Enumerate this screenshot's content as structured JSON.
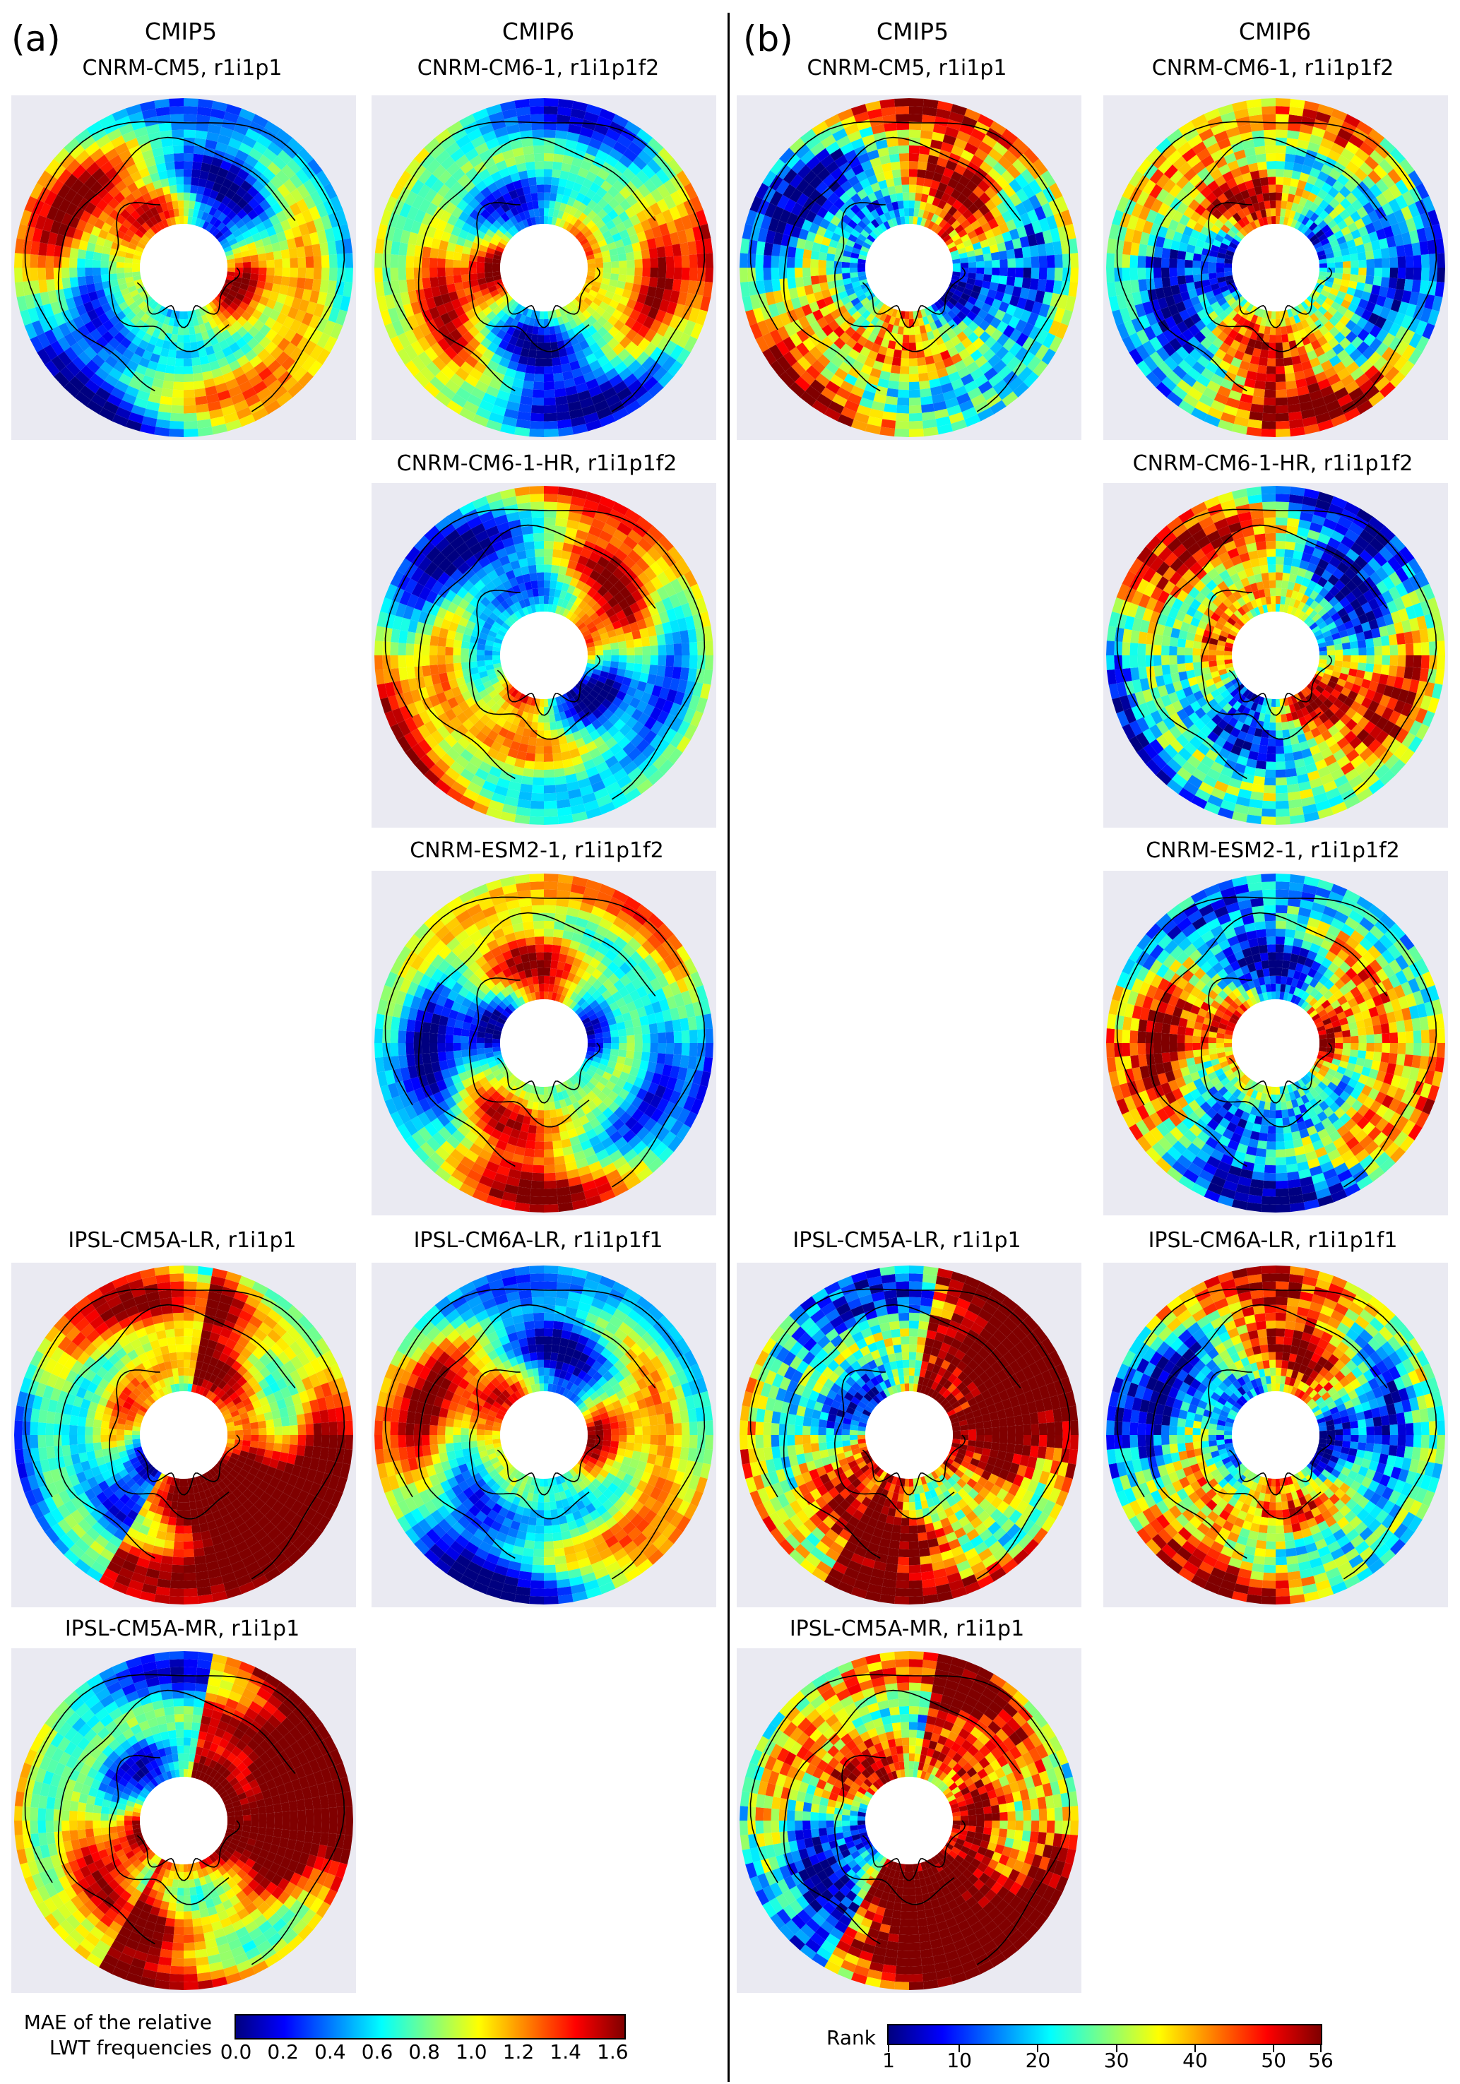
{
  "panels": [
    {
      "letter": "(a)",
      "col_cmip5": "CMIP5",
      "col_cmip6": "CMIP6"
    },
    {
      "letter": "(b)",
      "col_cmip5": "CMIP5",
      "col_cmip6": "CMIP6"
    }
  ],
  "maps": [
    {
      "title": "CNRM-CM5, r1i1p1",
      "panel": "a",
      "colormap": "jet",
      "variable": "MAE"
    },
    {
      "title": "CNRM-CM6-1, r1i1p1f2",
      "panel": "a",
      "colormap": "jet",
      "variable": "MAE"
    },
    {
      "title": "CNRM-CM6-1-HR, r1i1p1f2",
      "panel": "a",
      "colormap": "jet",
      "variable": "MAE"
    },
    {
      "title": "CNRM-ESM2-1, r1i1p1f2",
      "panel": "a",
      "colormap": "jet",
      "variable": "MAE"
    },
    {
      "title": "IPSL-CM5A-LR, r1i1p1",
      "panel": "a",
      "colormap": "jet",
      "variable": "MAE"
    },
    {
      "title": "IPSL-CM6A-LR, r1i1p1f1",
      "panel": "a",
      "colormap": "jet",
      "variable": "MAE"
    },
    {
      "title": "IPSL-CM5A-MR, r1i1p1",
      "panel": "a",
      "colormap": "jet",
      "variable": "MAE"
    },
    {
      "title": "CNRM-CM5, r1i1p1",
      "panel": "b",
      "colormap": "jet",
      "variable": "Rank"
    },
    {
      "title": "CNRM-CM6-1, r1i1p1f2",
      "panel": "b",
      "colormap": "jet",
      "variable": "Rank"
    },
    {
      "title": "CNRM-CM6-1-HR, r1i1p1f2",
      "panel": "b",
      "colormap": "jet",
      "variable": "Rank"
    },
    {
      "title": "CNRM-ESM2-1, r1i1p1f2",
      "panel": "b",
      "colormap": "jet",
      "variable": "Rank"
    },
    {
      "title": "IPSL-CM5A-LR, r1i1p1",
      "panel": "b",
      "colormap": "jet",
      "variable": "Rank"
    },
    {
      "title": "IPSL-CM6A-LR, r1i1p1f1",
      "panel": "b",
      "colormap": "jet",
      "variable": "Rank"
    },
    {
      "title": "IPSL-CM5A-MR, r1i1p1",
      "panel": "b",
      "colormap": "jet",
      "variable": "Rank"
    }
  ],
  "colorbar_a": {
    "label_line1": "MAE of the relative",
    "label_line2": "LWT frequencies",
    "min": 0.0,
    "max": 1.65,
    "ticks": [
      "0.0",
      "0.2",
      "0.4",
      "0.6",
      "0.8",
      "1.0",
      "1.2",
      "1.4",
      "1.6"
    ],
    "tick_values": [
      0.0,
      0.2,
      0.4,
      0.6,
      0.8,
      1.0,
      1.2,
      1.4,
      1.6
    ]
  },
  "colorbar_b": {
    "label": "Rank",
    "min": 1,
    "max": 56,
    "ticks": [
      "1",
      "10",
      "20",
      "30",
      "40",
      "50",
      "56"
    ],
    "tick_values": [
      1,
      10,
      20,
      30,
      40,
      50,
      56
    ]
  },
  "colors": {
    "map_background": "#eaeaf2",
    "pole_fill": "#ffffff",
    "coastline": "#000000"
  }
}
